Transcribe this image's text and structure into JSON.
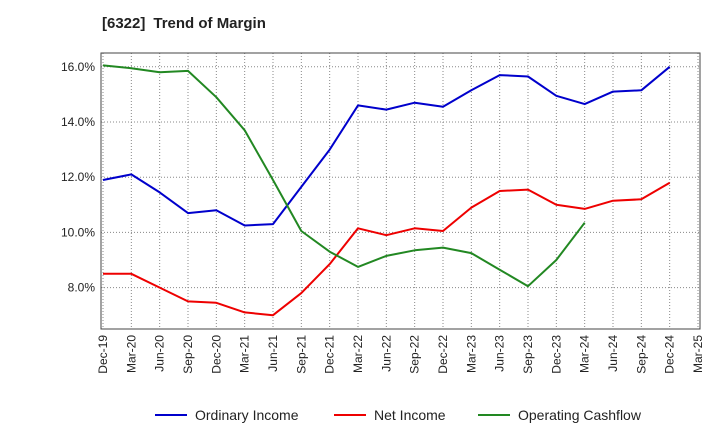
{
  "header": {
    "code": "[6322]",
    "title": "Trend of Margin"
  },
  "chart_data": {
    "type": "line",
    "title": "Trend of Margin",
    "categories": [
      "Dec-19",
      "Mar-20",
      "Jun-20",
      "Sep-20",
      "Dec-20",
      "Mar-21",
      "Jun-21",
      "Sep-21",
      "Dec-21",
      "Mar-22",
      "Jun-22",
      "Sep-22",
      "Dec-22",
      "Mar-23",
      "Jun-23",
      "Sep-23",
      "Dec-23",
      "Mar-24",
      "Jun-24",
      "Sep-24",
      "Dec-24",
      "Mar-25"
    ],
    "ylim": [
      6.5,
      16.5
    ],
    "yticks": [
      8.0,
      10.0,
      12.0,
      14.0,
      16.0
    ],
    "ytick_labels": [
      "8.0%",
      "10.0%",
      "12.0%",
      "14.0%",
      "16.0%"
    ],
    "grid": true,
    "legend_position": "bottom",
    "series": [
      {
        "name": "Ordinary Income",
        "color": "#0000cc",
        "values": [
          11.9,
          12.1,
          11.45,
          10.7,
          10.8,
          10.25,
          10.3,
          11.65,
          13.0,
          14.6,
          14.45,
          14.7,
          14.55,
          15.15,
          15.7,
          15.65,
          14.95,
          14.65,
          15.1,
          15.15,
          16.0,
          null
        ]
      },
      {
        "name": "Net Income",
        "color": "#ee0000",
        "values": [
          8.5,
          8.5,
          8.0,
          7.5,
          7.45,
          7.1,
          7.0,
          7.8,
          8.85,
          10.15,
          9.9,
          10.15,
          10.05,
          10.9,
          11.5,
          11.55,
          11.0,
          10.85,
          11.15,
          11.2,
          11.8,
          null
        ]
      },
      {
        "name": "Operating Cashflow",
        "color": "#228822",
        "values": [
          16.05,
          15.95,
          15.8,
          15.85,
          14.9,
          13.7,
          11.9,
          10.05,
          9.3,
          8.75,
          9.15,
          9.35,
          9.45,
          9.25,
          8.65,
          8.05,
          9.0,
          10.35,
          null,
          null,
          null,
          null
        ]
      }
    ]
  }
}
